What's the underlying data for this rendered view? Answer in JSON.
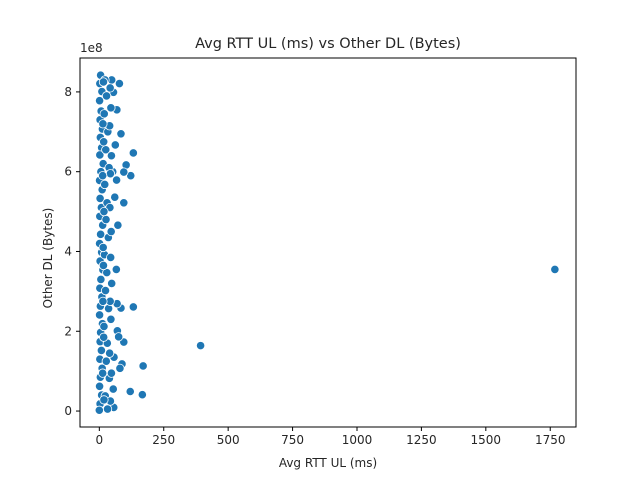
{
  "chart_data": {
    "type": "scatter",
    "title": "Avg RTT UL (ms) vs Other DL (Bytes)",
    "xlabel": "Avg RTT UL (ms)",
    "ylabel": "Other DL (Bytes)",
    "y_offset_label": "1e8",
    "xlim": [
      -75,
      1850
    ],
    "ylim": [
      -0.4,
      8.85
    ],
    "y_scale": 100000000,
    "x_ticks": [
      0,
      250,
      500,
      750,
      1000,
      1250,
      1500,
      1750
    ],
    "x_tick_labels": [
      "0",
      "250",
      "500",
      "750",
      "1000",
      "1250",
      "1500",
      "1750"
    ],
    "y_ticks": [
      0,
      2,
      4,
      6,
      8
    ],
    "y_tick_labels": [
      "0",
      "2",
      "4",
      "6",
      "8"
    ],
    "grid": false,
    "legend": "none",
    "marker_color": "#1f77b4",
    "marker_edge_color": "#ffffff",
    "points": [
      {
        "x": 1768,
        "y": 3.55
      },
      {
        "x": 393,
        "y": 1.64
      },
      {
        "x": 170,
        "y": 1.13
      },
      {
        "x": 167,
        "y": 0.41
      },
      {
        "x": 120,
        "y": 0.49
      },
      {
        "x": 132,
        "y": 6.47
      },
      {
        "x": 122,
        "y": 5.9
      },
      {
        "x": 104,
        "y": 6.17
      },
      {
        "x": 95,
        "y": 5.99
      },
      {
        "x": 95,
        "y": 5.22
      },
      {
        "x": 132,
        "y": 2.61
      },
      {
        "x": 84,
        "y": 2.58
      },
      {
        "x": 95,
        "y": 1.73
      },
      {
        "x": 88,
        "y": 1.18
      },
      {
        "x": 80,
        "y": 1.07
      },
      {
        "x": 84,
        "y": 6.95
      },
      {
        "x": 78,
        "y": 8.21
      },
      {
        "x": 68,
        "y": 7.55
      },
      {
        "x": 62,
        "y": 6.67
      },
      {
        "x": 67,
        "y": 5.79
      },
      {
        "x": 72,
        "y": 4.66
      },
      {
        "x": 66,
        "y": 3.55
      },
      {
        "x": 69,
        "y": 2.69
      },
      {
        "x": 70,
        "y": 2.01
      },
      {
        "x": 75,
        "y": 1.86
      },
      {
        "x": 56,
        "y": 0.09
      },
      {
        "x": 54,
        "y": 0.55
      },
      {
        "x": 57,
        "y": 1.35
      },
      {
        "x": 52,
        "y": 6.0
      },
      {
        "x": 55,
        "y": 7.99
      },
      {
        "x": 48,
        "y": 8.3
      },
      {
        "x": 60,
        "y": 5.36
      },
      {
        "x": 5,
        "y": 8.42
      },
      {
        "x": 2,
        "y": 8.21
      },
      {
        "x": 10,
        "y": 8.01
      },
      {
        "x": 1,
        "y": 7.78
      },
      {
        "x": 7,
        "y": 7.52
      },
      {
        "x": 3,
        "y": 7.3
      },
      {
        "x": 12,
        "y": 7.07
      },
      {
        "x": 4,
        "y": 6.86
      },
      {
        "x": 9,
        "y": 6.6
      },
      {
        "x": 2,
        "y": 6.42
      },
      {
        "x": 15,
        "y": 6.2
      },
      {
        "x": 6,
        "y": 6.0
      },
      {
        "x": 1,
        "y": 5.78
      },
      {
        "x": 11,
        "y": 5.55
      },
      {
        "x": 3,
        "y": 5.33
      },
      {
        "x": 8,
        "y": 5.1
      },
      {
        "x": 2,
        "y": 4.88
      },
      {
        "x": 13,
        "y": 4.66
      },
      {
        "x": 5,
        "y": 4.43
      },
      {
        "x": 1,
        "y": 4.2
      },
      {
        "x": 9,
        "y": 3.98
      },
      {
        "x": 3,
        "y": 3.76
      },
      {
        "x": 14,
        "y": 3.54
      },
      {
        "x": 6,
        "y": 3.3
      },
      {
        "x": 2,
        "y": 3.08
      },
      {
        "x": 10,
        "y": 2.86
      },
      {
        "x": 4,
        "y": 2.63
      },
      {
        "x": 1,
        "y": 2.41
      },
      {
        "x": 12,
        "y": 2.19
      },
      {
        "x": 5,
        "y": 1.97
      },
      {
        "x": 3,
        "y": 1.74
      },
      {
        "x": 8,
        "y": 1.52
      },
      {
        "x": 2,
        "y": 1.3
      },
      {
        "x": 11,
        "y": 1.07
      },
      {
        "x": 4,
        "y": 0.85
      },
      {
        "x": 1,
        "y": 0.62
      },
      {
        "x": 9,
        "y": 0.4
      },
      {
        "x": 3,
        "y": 0.18
      },
      {
        "x": 0,
        "y": 0.02
      },
      {
        "x": 22,
        "y": 8.3
      },
      {
        "x": 28,
        "y": 7.9
      },
      {
        "x": 19,
        "y": 7.45
      },
      {
        "x": 33,
        "y": 7.0
      },
      {
        "x": 25,
        "y": 6.55
      },
      {
        "x": 38,
        "y": 6.1
      },
      {
        "x": 21,
        "y": 5.68
      },
      {
        "x": 30,
        "y": 5.22
      },
      {
        "x": 26,
        "y": 4.8
      },
      {
        "x": 35,
        "y": 4.35
      },
      {
        "x": 20,
        "y": 3.92
      },
      {
        "x": 29,
        "y": 3.47
      },
      {
        "x": 24,
        "y": 3.02
      },
      {
        "x": 36,
        "y": 2.57
      },
      {
        "x": 18,
        "y": 2.12
      },
      {
        "x": 31,
        "y": 1.7
      },
      {
        "x": 27,
        "y": 1.25
      },
      {
        "x": 39,
        "y": 0.82
      },
      {
        "x": 23,
        "y": 0.38
      },
      {
        "x": 32,
        "y": 0.05
      },
      {
        "x": 42,
        "y": 8.1
      },
      {
        "x": 45,
        "y": 7.6
      },
      {
        "x": 40,
        "y": 7.15
      },
      {
        "x": 47,
        "y": 6.4
      },
      {
        "x": 43,
        "y": 5.95
      },
      {
        "x": 41,
        "y": 5.1
      },
      {
        "x": 46,
        "y": 4.5
      },
      {
        "x": 44,
        "y": 3.85
      },
      {
        "x": 48,
        "y": 3.2
      },
      {
        "x": 42,
        "y": 2.75
      },
      {
        "x": 45,
        "y": 2.3
      },
      {
        "x": 40,
        "y": 1.45
      },
      {
        "x": 47,
        "y": 0.95
      },
      {
        "x": 43,
        "y": 0.25
      },
      {
        "x": 16,
        "y": 8.25
      },
      {
        "x": 14,
        "y": 7.2
      },
      {
        "x": 17,
        "y": 6.75
      },
      {
        "x": 13,
        "y": 5.9
      },
      {
        "x": 18,
        "y": 5.0
      },
      {
        "x": 15,
        "y": 4.1
      },
      {
        "x": 16,
        "y": 3.65
      },
      {
        "x": 14,
        "y": 2.75
      },
      {
        "x": 17,
        "y": 1.85
      },
      {
        "x": 13,
        "y": 0.95
      },
      {
        "x": 18,
        "y": 0.28
      }
    ]
  }
}
